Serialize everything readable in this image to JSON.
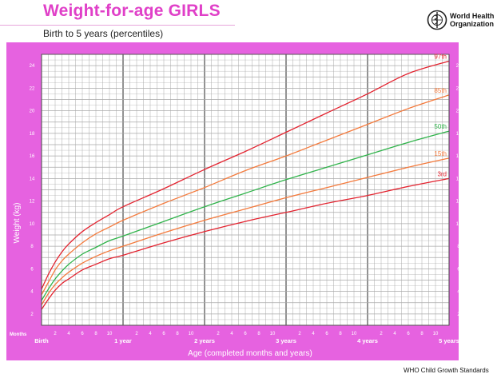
{
  "header": {
    "title": "Weight-for-age GIRLS",
    "subtitle": "Birth to 5 years (percentiles)",
    "org_line1": "World Health",
    "org_line2": "Organization",
    "logo_icon": "who-emblem-icon"
  },
  "footer": {
    "text": "WHO Child Growth Standards"
  },
  "colors": {
    "panel": "#e662e0",
    "grid_minor": "#a9a9a9",
    "grid_major": "#3a3a3a",
    "p97": "#e3232f",
    "p85": "#f47a3c",
    "p50": "#2fb34a",
    "p15": "#f47a3c",
    "p3": "#e3232f"
  },
  "chart_data": {
    "type": "line",
    "title": "Weight-for-age GIRLS",
    "subtitle": "Birth to 5 years (percentiles)",
    "xlabel": "Age (completed months and years)",
    "ylabel": "Weight (kg)",
    "x_unit_label": "Months",
    "xlim": [
      0,
      60
    ],
    "ylim": [
      1,
      25
    ],
    "y_ticks": [
      2,
      4,
      6,
      8,
      10,
      12,
      14,
      16,
      18,
      20,
      22,
      24
    ],
    "x_major_labels": [
      {
        "month": 0,
        "label": "Birth"
      },
      {
        "month": 12,
        "label": "1 year"
      },
      {
        "month": 24,
        "label": "2 years"
      },
      {
        "month": 36,
        "label": "3 years"
      },
      {
        "month": 48,
        "label": "4 years"
      },
      {
        "month": 60,
        "label": "5 years"
      }
    ],
    "x_minor_labels": [
      "2",
      "4",
      "6",
      "8",
      "10"
    ],
    "grid": true,
    "x": [
      0,
      1,
      2,
      3,
      4,
      6,
      8,
      10,
      12,
      18,
      24,
      30,
      36,
      42,
      48,
      54,
      60
    ],
    "series": [
      {
        "name": "97th",
        "values": [
          4.2,
          5.5,
          6.6,
          7.5,
          8.2,
          9.3,
          10.1,
          10.8,
          11.5,
          13.1,
          14.8,
          16.4,
          18.1,
          19.8,
          21.5,
          23.3,
          24.4
        ]
      },
      {
        "name": "85th",
        "values": [
          3.7,
          4.8,
          5.9,
          6.7,
          7.3,
          8.3,
          9.1,
          9.7,
          10.3,
          11.8,
          13.2,
          14.7,
          16.0,
          17.4,
          18.8,
          20.2,
          21.4
        ]
      },
      {
        "name": "50th",
        "values": [
          3.2,
          4.2,
          5.1,
          5.8,
          6.4,
          7.3,
          7.9,
          8.5,
          8.9,
          10.2,
          11.5,
          12.7,
          13.9,
          15.0,
          16.1,
          17.2,
          18.2
        ]
      },
      {
        "name": "15th",
        "values": [
          2.8,
          3.8,
          4.6,
          5.2,
          5.7,
          6.5,
          7.1,
          7.6,
          8.0,
          9.2,
          10.3,
          11.3,
          12.3,
          13.2,
          14.1,
          15.0,
          15.8
        ]
      },
      {
        "name": "3rd",
        "values": [
          2.4,
          3.3,
          4.1,
          4.7,
          5.1,
          5.9,
          6.4,
          6.9,
          7.2,
          8.3,
          9.3,
          10.2,
          11.0,
          11.8,
          12.5,
          13.3,
          14.0
        ]
      }
    ]
  }
}
